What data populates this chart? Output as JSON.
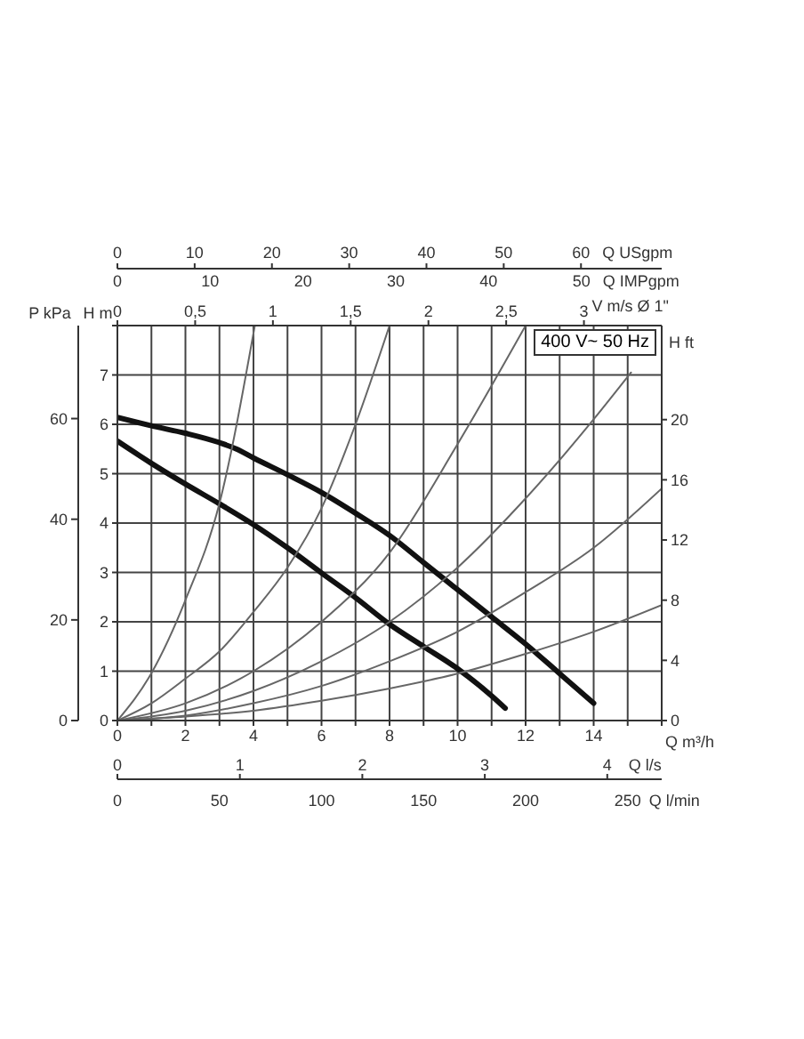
{
  "chart_data": {
    "type": "line",
    "xlabel": "Q m³/h",
    "ylabel": "H m",
    "y2label": "P kPa",
    "y3label": "H ft",
    "x2label": "V m/s Ø 1\"",
    "xlim": [
      0,
      16
    ],
    "xticks": [
      0,
      {
        "value": 1,
        "label": null
      },
      2,
      {
        "value": 3,
        "label": null
      },
      4,
      {
        "value": 5,
        "label": null
      },
      6,
      {
        "value": 7,
        "label": null
      },
      8,
      {
        "value": 9,
        "label": null
      },
      10,
      {
        "value": 11,
        "label": null
      },
      12,
      {
        "value": 13,
        "label": null
      },
      14,
      {
        "value": 15,
        "label": null
      },
      {
        "value": 16,
        "label": null
      }
    ],
    "ylim": [
      0,
      8
    ],
    "yticks": [
      0,
      1,
      2,
      3,
      4,
      5,
      6,
      7,
      {
        "value": 8,
        "label": null
      }
    ],
    "y2lim": [
      0,
      78.48
    ],
    "y2ticks": [
      0,
      20,
      40,
      60
    ],
    "y3lim": [
      0,
      26.25
    ],
    "y3ticks": [
      0,
      4,
      8,
      12,
      16,
      20
    ],
    "x2lim": [
      0,
      3.5
    ],
    "x2ticks": [
      0,
      {
        "value": 0.5,
        "label": "0,5"
      },
      1,
      {
        "value": 1.5,
        "label": "1,5"
      },
      2,
      {
        "value": 2.5,
        "label": "2,5"
      },
      3
    ],
    "grid": true,
    "annotations": [
      "400 V~ 50 Hz",
      "0",
      "10",
      "20",
      "30",
      "40",
      "50",
      "60",
      "Q USgpm",
      "0",
      "10",
      "20",
      "30",
      "40",
      "50",
      "Q IMPgpm",
      "0",
      "1",
      "2",
      "3",
      "4",
      "Q l/s",
      "0",
      "50",
      "100",
      "150",
      "200",
      "250",
      "Q l/min"
    ],
    "series": [
      {
        "color": "#111111",
        "x": [
          0,
          1,
          2,
          3,
          3.5,
          4,
          5,
          6,
          7,
          8,
          9,
          10,
          11,
          12,
          13,
          14
        ],
        "values": [
          6.14,
          5.97,
          5.82,
          5.63,
          5.5,
          5.32,
          4.98,
          4.62,
          4.2,
          3.75,
          3.2,
          2.65,
          2.1,
          1.55,
          0.95,
          0.35
        ]
      },
      {
        "color": "#111111",
        "x": [
          0,
          1,
          2,
          3,
          4,
          5,
          6,
          7,
          8,
          9,
          10,
          11,
          11.4
        ],
        "values": [
          5.66,
          5.21,
          4.79,
          4.39,
          3.97,
          3.5,
          2.99,
          2.49,
          1.95,
          1.5,
          1.05,
          0.5,
          0.25
        ]
      },
      {
        "color": "#666666",
        "x": [
          0,
          1,
          2,
          3,
          4.04
        ],
        "values": [
          0,
          0.96,
          2.44,
          4.4,
          8
        ]
      },
      {
        "color": "#666666",
        "x": [
          0,
          1,
          2,
          3,
          4,
          5,
          6,
          7,
          8
        ],
        "values": [
          0,
          0.35,
          0.85,
          1.4,
          2.2,
          3.1,
          4.3,
          6,
          8
        ]
      },
      {
        "color": "#666666",
        "x": [
          0,
          2,
          4,
          6,
          8,
          10,
          12
        ],
        "values": [
          0,
          0.35,
          1,
          2,
          3.4,
          5.6,
          8
        ]
      },
      {
        "color": "#666666",
        "x": [
          0,
          2,
          4,
          6,
          8,
          10,
          12,
          14,
          15.1
        ],
        "values": [
          0,
          0.2,
          0.6,
          1.2,
          2,
          3.1,
          4.5,
          6.1,
          7.05
        ]
      },
      {
        "color": "#666666",
        "x": [
          0,
          2,
          4,
          6,
          8,
          10,
          12,
          14,
          16
        ],
        "values": [
          0,
          0.1,
          0.35,
          0.7,
          1.2,
          1.8,
          2.6,
          3.5,
          4.7
        ]
      },
      {
        "color": "#666666",
        "x": [
          0,
          2,
          4,
          6,
          8,
          10,
          12,
          14,
          16
        ],
        "values": [
          0,
          0.08,
          0.2,
          0.4,
          0.65,
          0.95,
          1.35,
          1.8,
          2.34
        ]
      }
    ]
  }
}
